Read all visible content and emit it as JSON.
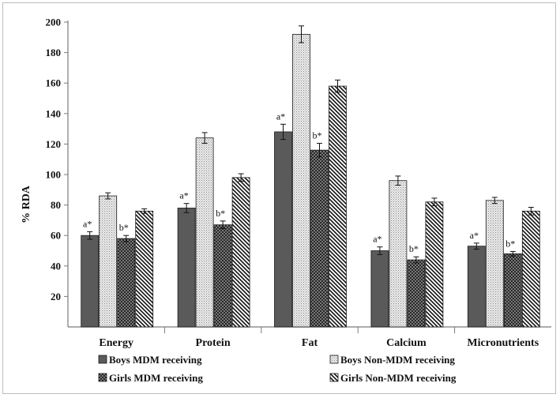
{
  "chart_data": {
    "type": "bar",
    "title": "",
    "xlabel": "",
    "ylabel": "% RDA",
    "ylim": [
      0,
      200
    ],
    "yticks": [
      "20",
      "40",
      "60",
      "80",
      "100",
      "120",
      "140",
      "160",
      "180",
      "200"
    ],
    "categories": [
      "Energy",
      "Protein",
      "Fat",
      "Calcium",
      "Micronutrients"
    ],
    "legend_placement": "bottom",
    "series": [
      {
        "name": "Boys MDM receiving",
        "values": [
          60,
          78,
          128,
          50,
          53
        ],
        "errors": [
          2.5,
          3,
          5,
          2.5,
          2
        ],
        "annotations": [
          "a*",
          "a*",
          "a*",
          "a*",
          "a*"
        ],
        "color": "#5a5a5a",
        "pattern": "solid"
      },
      {
        "name": "Boys Non-MDM receiving",
        "values": [
          86,
          124,
          192,
          96,
          83
        ],
        "errors": [
          2,
          3.5,
          5.5,
          3,
          2
        ],
        "annotations": [
          "",
          "",
          "",
          "",
          ""
        ],
        "color": "#dedede",
        "pattern": "dots"
      },
      {
        "name": "Girls MDM receiving",
        "values": [
          58,
          67,
          116,
          44,
          48
        ],
        "errors": [
          2,
          2.5,
          4.5,
          2,
          1.5
        ],
        "annotations": [
          "b*",
          "b*",
          "b*",
          "b*",
          "b*"
        ],
        "color": "#6a6a6a",
        "pattern": "crosshatch"
      },
      {
        "name": "Girls Non-MDM receiving",
        "values": [
          76,
          98,
          158,
          82,
          76
        ],
        "errors": [
          1.5,
          2.5,
          4,
          2.5,
          2.5
        ],
        "annotations": [
          "",
          "",
          "",
          "",
          ""
        ],
        "color": "#2a2a2a",
        "pattern": "diagonal"
      }
    ]
  }
}
